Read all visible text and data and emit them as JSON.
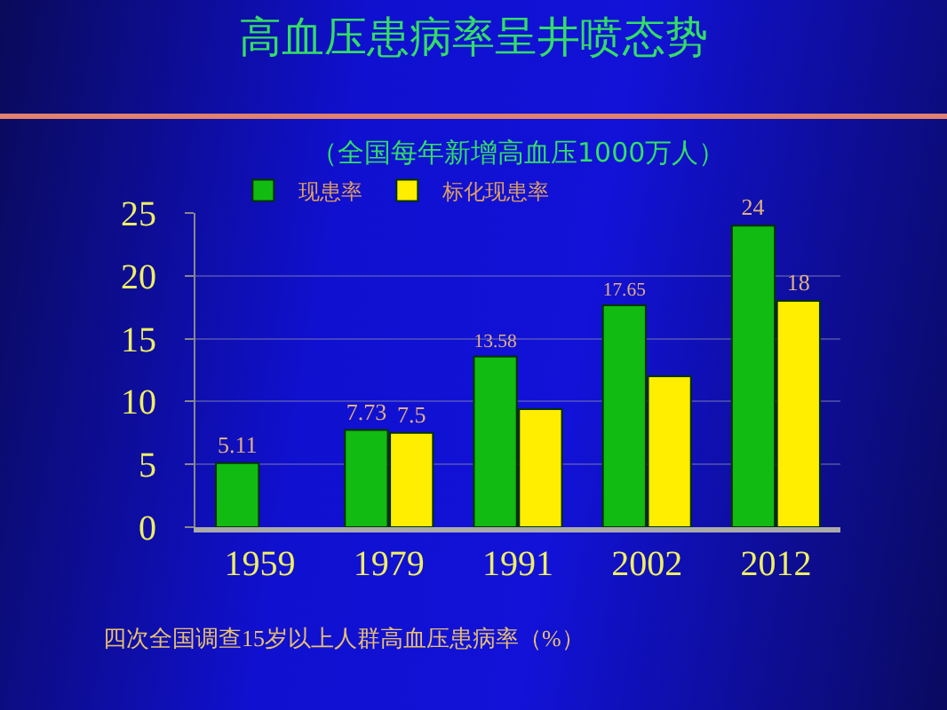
{
  "chart_data": {
    "type": "bar",
    "title": "高血压患病率呈井喷态势",
    "subtitle": "（全国每年新增高血压1000万人）",
    "categories": [
      "1959",
      "1979",
      "1991",
      "2002",
      "2012"
    ],
    "series": [
      {
        "name": "现患率",
        "color": "#11bb11",
        "values": [
          5.11,
          7.73,
          13.58,
          17.65,
          24
        ],
        "value_labels": [
          "5.11",
          "7.73",
          "13.58",
          "17.65",
          "24"
        ]
      },
      {
        "name": "标化现患率",
        "color": "#ffee00",
        "values": [
          null,
          7.5,
          9.4,
          12,
          18
        ],
        "value_labels": [
          null,
          "7.5",
          null,
          null,
          "18"
        ]
      }
    ],
    "ylim": [
      0,
      25
    ],
    "yticks": [
      0,
      5,
      10,
      15,
      20,
      25
    ],
    "grid": "y",
    "legend": "top left",
    "annotations": [
      "四次全国调查15岁以上人群高血压患病率（%）"
    ]
  }
}
